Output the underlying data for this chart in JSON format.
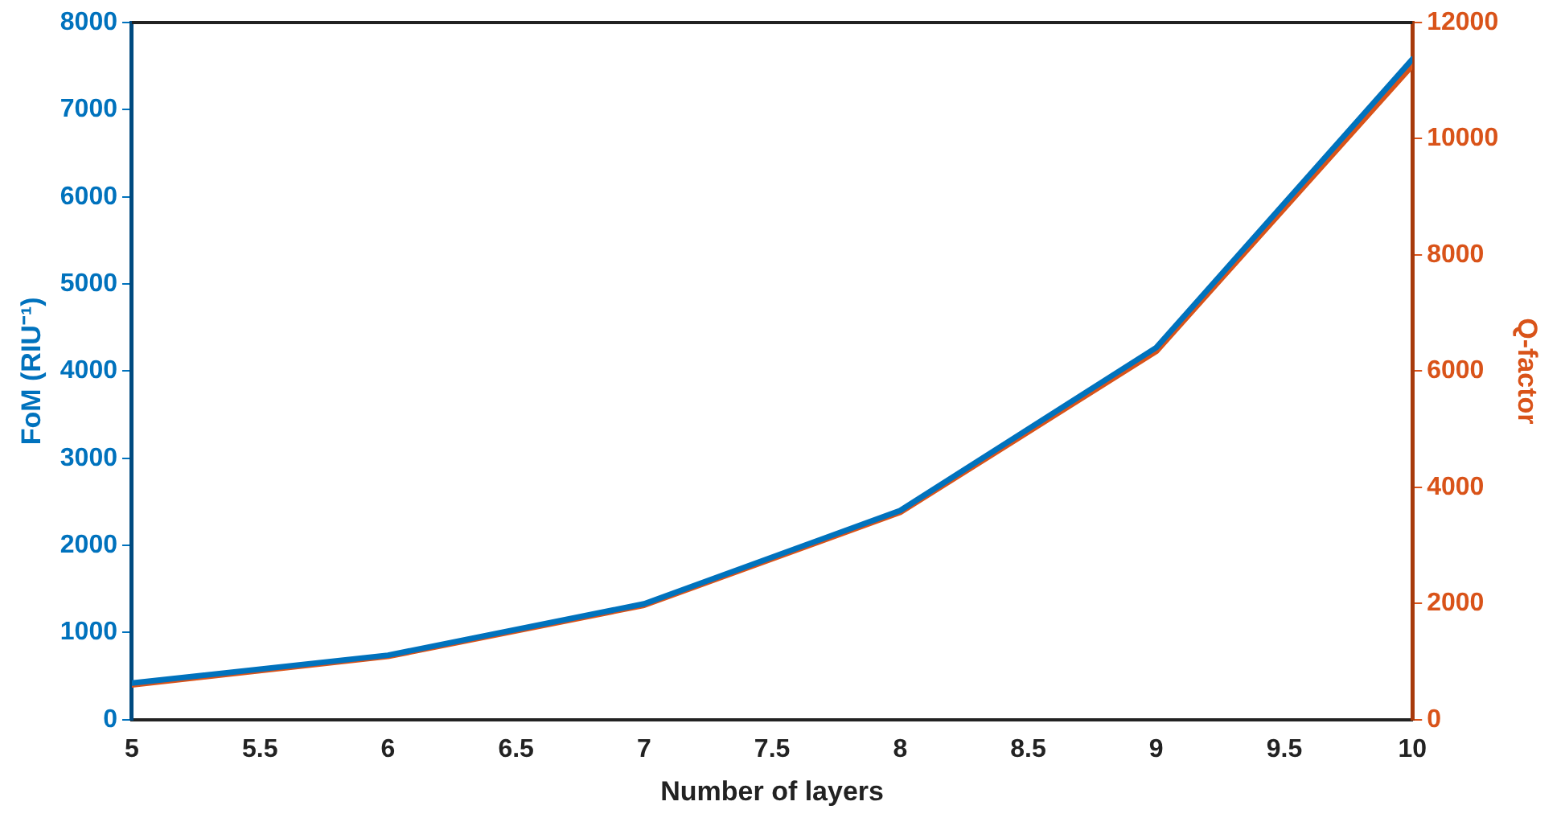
{
  "chart_data": {
    "type": "line",
    "xlabel": "Number of layers",
    "ylabel": "FoM (RIU⁻¹)",
    "y2label": "Q-factor",
    "x": [
      5,
      6,
      7,
      8,
      9,
      10
    ],
    "series": [
      {
        "color": "#0072bd",
        "values": [
          420,
          740,
          1330,
          2400,
          4270,
          7580
        ]
      },
      {
        "color": "#d95319",
        "axis": "y2",
        "values": [
          600,
          1090,
          1970,
          3570,
          6340,
          11260
        ]
      }
    ],
    "xlim": [
      5,
      10
    ],
    "xticks": [
      5,
      5.5,
      6,
      6.5,
      7,
      7.5,
      8,
      8.5,
      9,
      9.5,
      10
    ],
    "ylim": [
      0,
      8000
    ],
    "yticks": [
      0,
      1000,
      2000,
      3000,
      4000,
      5000,
      6000,
      7000,
      8000
    ],
    "y2lim": [
      0,
      12000
    ],
    "y2ticks": [
      0,
      2000,
      4000,
      6000,
      8000,
      10000,
      12000
    ],
    "grid": false,
    "legend": false,
    "marker": "none",
    "line_style": "solid"
  }
}
